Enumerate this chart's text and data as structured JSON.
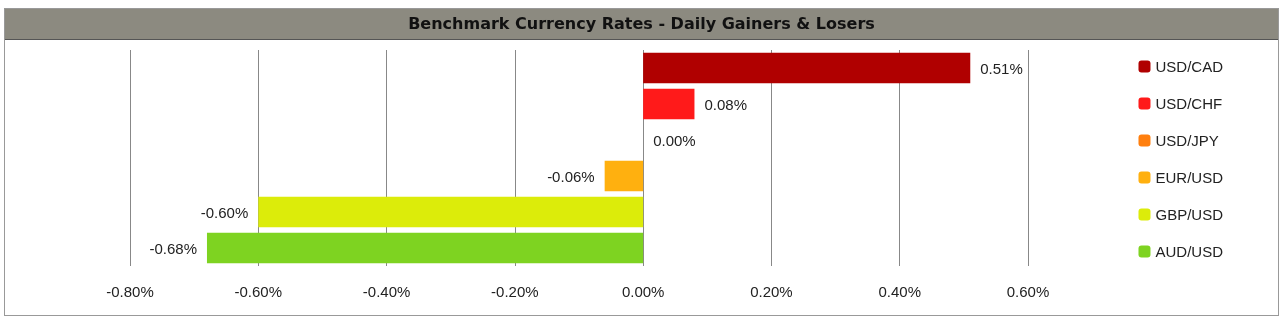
{
  "chart_data": {
    "type": "bar",
    "orientation": "horizontal",
    "title": "Benchmark Currency Rates - Daily Gainers & Losers",
    "categories": [
      null,
      null,
      null,
      null,
      null,
      null
    ],
    "series": [
      {
        "name": "USD/CAD",
        "color": "#b00000",
        "values": [
          0.51,
          null,
          null,
          null,
          null,
          null
        ],
        "value_labels": [
          "0.51%",
          null,
          null,
          null,
          null,
          null
        ]
      },
      {
        "name": "USD/CHF",
        "color": "#ff1a1a",
        "values": [
          null,
          0.08,
          null,
          null,
          null,
          null
        ],
        "value_labels": [
          null,
          "0.08%",
          null,
          null,
          null,
          null
        ]
      },
      {
        "name": "USD/JPY",
        "color": "#ff7f0e",
        "values": [
          null,
          null,
          0,
          null,
          null,
          null
        ],
        "value_labels": [
          null,
          null,
          "0.00%",
          null,
          null,
          null
        ]
      },
      {
        "name": "EUR/USD",
        "color": "#ffb00f",
        "values": [
          null,
          null,
          null,
          -0.06,
          null,
          null
        ],
        "value_labels": [
          null,
          null,
          null,
          "-0.06%",
          null,
          null
        ]
      },
      {
        "name": "GBP/USD",
        "color": "#dcec0a",
        "values": [
          null,
          null,
          null,
          null,
          -0.6,
          null
        ],
        "value_labels": [
          null,
          null,
          null,
          null,
          "-0.60%",
          null
        ]
      },
      {
        "name": "AUD/USD",
        "color": "#7ed321",
        "values": [
          null,
          null,
          null,
          null,
          null,
          -0.68
        ],
        "value_labels": [
          null,
          null,
          null,
          null,
          null,
          "-0.68%"
        ]
      }
    ],
    "xlim": [
      -0.8,
      0.6
    ],
    "xticks": [
      {
        "value": -0.8,
        "label": "-0.80%"
      },
      {
        "value": -0.6,
        "label": "-0.60%"
      },
      {
        "value": -0.4,
        "label": "-0.40%"
      },
      {
        "value": -0.2,
        "label": "-0.20%"
      },
      {
        "value": 0,
        "label": "0.00%"
      },
      {
        "value": 0.2,
        "label": "0.20%"
      },
      {
        "value": 0.4,
        "label": "0.40%"
      },
      {
        "value": 0.6,
        "label": "0.60%"
      }
    ],
    "grid": "x",
    "legend": "right"
  }
}
